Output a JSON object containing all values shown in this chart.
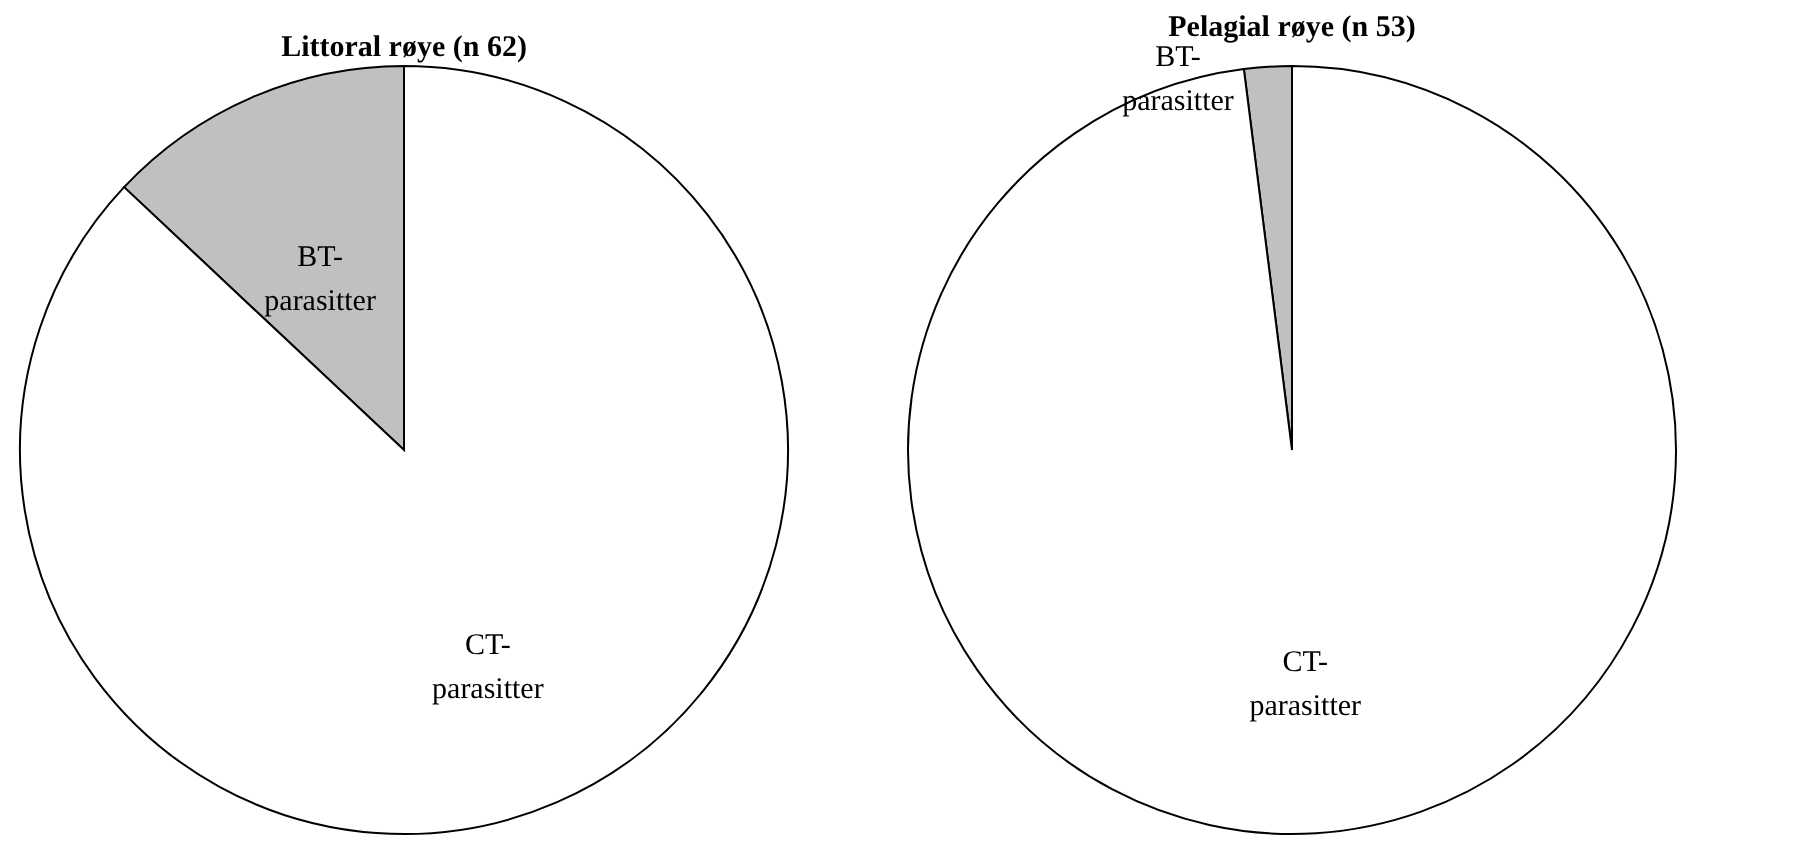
{
  "chart_data": [
    {
      "type": "pie",
      "title": "Littoral røye (n 62)",
      "categories": [
        "BT-parasitter",
        "CT-parasitter"
      ],
      "values": [
        13,
        87
      ],
      "colors": [
        "#c0c0c0",
        "#ffffff"
      ]
    },
    {
      "type": "pie",
      "title": "Pelagial røye (n 53)",
      "categories": [
        "BT-parasitter",
        "CT-parasitter"
      ],
      "values": [
        2,
        98
      ],
      "colors": [
        "#c0c0c0",
        "#ffffff"
      ]
    }
  ]
}
